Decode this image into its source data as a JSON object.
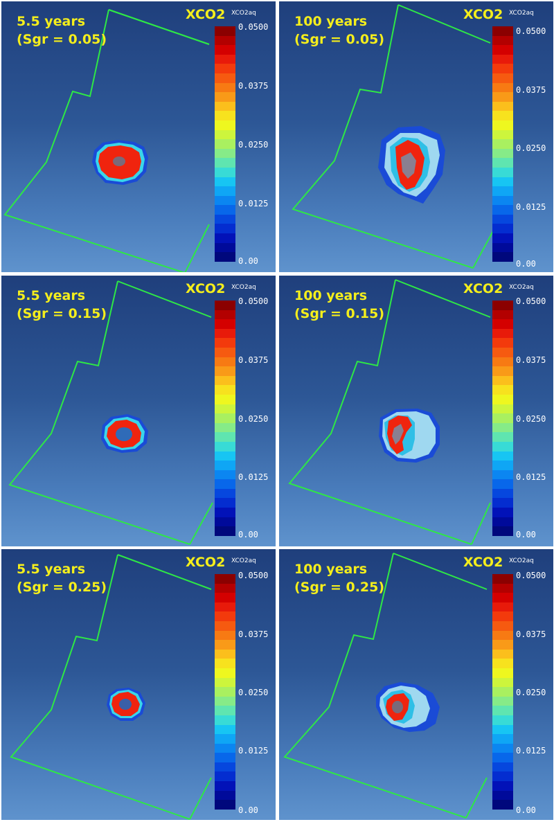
{
  "colorbar": {
    "title": "XCO2",
    "name": "XCO2aq",
    "ticks": [
      "0.0500",
      "0.0375",
      "0.0250",
      "0.0125",
      "0.00"
    ],
    "colors": [
      "#8b0000",
      "#b30000",
      "#d40000",
      "#e81a0a",
      "#f33a0c",
      "#f65a10",
      "#f77a13",
      "#f99a18",
      "#fbbf1c",
      "#f7e21e",
      "#eef71f",
      "#cdf53c",
      "#a9f060",
      "#86eb88",
      "#5fe5b0",
      "#38dbd6",
      "#17c5f3",
      "#0fa6f5",
      "#0b86f1",
      "#0867ea",
      "#0647de",
      "#042dd0",
      "#0212b8",
      "#000a9a",
      "#00087c"
    ]
  },
  "panels": [
    {
      "time": "5.5 years",
      "sgr": "(Sgr = 0.05)"
    },
    {
      "time": "100 years",
      "sgr": "(Sgr = 0.05)"
    },
    {
      "time": "5.5 years",
      "sgr": "(Sgr = 0.15)"
    },
    {
      "time": "100 years",
      "sgr": "(Sgr = 0.15)"
    },
    {
      "time": "5.5 years",
      "sgr": "(Sgr = 0.25)"
    },
    {
      "time": "100 years",
      "sgr": "(Sgr = 0.25)"
    }
  ]
}
